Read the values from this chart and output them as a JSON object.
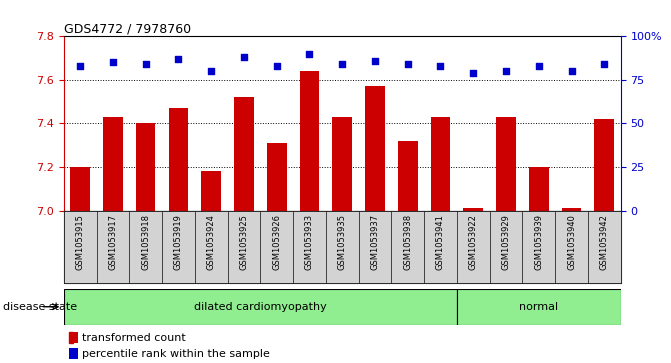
{
  "title": "GDS4772 / 7978760",
  "samples": [
    "GSM1053915",
    "GSM1053917",
    "GSM1053918",
    "GSM1053919",
    "GSM1053924",
    "GSM1053925",
    "GSM1053926",
    "GSM1053933",
    "GSM1053935",
    "GSM1053937",
    "GSM1053938",
    "GSM1053941",
    "GSM1053922",
    "GSM1053929",
    "GSM1053939",
    "GSM1053940",
    "GSM1053942"
  ],
  "transformed_counts": [
    7.2,
    7.43,
    7.4,
    7.47,
    7.18,
    7.52,
    7.31,
    7.64,
    7.43,
    7.57,
    7.32,
    7.43,
    7.01,
    7.43,
    7.2,
    7.01,
    7.42
  ],
  "percentile_ranks": [
    83,
    85,
    84,
    87,
    80,
    88,
    83,
    90,
    84,
    86,
    84,
    83,
    79,
    80,
    83,
    80,
    84
  ],
  "n_dilated": 12,
  "n_total": 17,
  "label_dilated": "dilated cardiomyopathy",
  "label_normal": "normal",
  "bar_color": "#CC0000",
  "dot_color": "#0000CC",
  "ylim_left": [
    7.0,
    7.8
  ],
  "ylim_right": [
    0,
    100
  ],
  "yticks_left": [
    7.0,
    7.2,
    7.4,
    7.6,
    7.8
  ],
  "yticks_right": [
    0,
    25,
    50,
    75,
    100
  ],
  "ytick_labels_right": [
    "0",
    "25",
    "50",
    "75",
    "100%"
  ],
  "grid_values": [
    7.2,
    7.4,
    7.6
  ],
  "tick_label_area_bg": "#d3d3d3",
  "disease_bg_color": "#90EE90",
  "disease_state_label": "disease state",
  "legend_bar_label": "transformed count",
  "legend_dot_label": "percentile rank within the sample"
}
